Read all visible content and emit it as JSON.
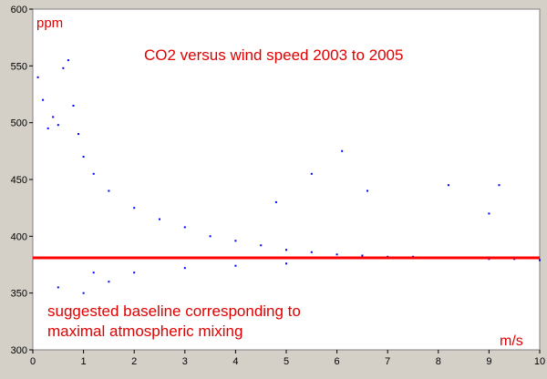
{
  "chart_data": {
    "type": "scatter",
    "title": "CO2 versus wind speed 2003 to 2005",
    "ylabel": "ppm",
    "xlabel": "m/s",
    "xlim": [
      0,
      10
    ],
    "ylim": [
      300,
      600
    ],
    "x_ticks": [
      "0",
      "1",
      "2",
      "3",
      "4",
      "5",
      "6",
      "7",
      "8",
      "9",
      "10"
    ],
    "y_ticks": [
      "300",
      "350",
      "400",
      "450",
      "500",
      "550",
      "600"
    ],
    "grid": false,
    "point_color": "#0000ff",
    "baseline": {
      "y": 381,
      "color": "#ff0000"
    },
    "annotation": [
      "suggested baseline corresponding to",
      "maximal atmospheric mixing"
    ],
    "series": [
      {
        "points": [
          [
            0.1,
            540
          ],
          [
            0.2,
            520
          ],
          [
            0.3,
            495
          ],
          [
            0.4,
            505
          ],
          [
            0.5,
            498
          ],
          [
            0.6,
            548
          ],
          [
            0.7,
            555
          ],
          [
            0.8,
            515
          ],
          [
            0.9,
            490
          ],
          [
            1.0,
            470
          ],
          [
            1.2,
            455
          ],
          [
            1.5,
            440
          ],
          [
            2.0,
            425
          ],
          [
            2.5,
            415
          ],
          [
            3.0,
            408
          ],
          [
            3.5,
            400
          ],
          [
            4.0,
            396
          ],
          [
            4.5,
            392
          ],
          [
            5.0,
            388
          ],
          [
            5.5,
            386
          ],
          [
            6.0,
            384
          ],
          [
            6.5,
            383
          ],
          [
            7.0,
            382
          ],
          [
            7.5,
            382
          ],
          [
            8.0,
            381
          ],
          [
            8.5,
            381
          ],
          [
            9.0,
            380
          ],
          [
            9.5,
            380
          ],
          [
            10.0,
            379
          ],
          [
            0.5,
            355
          ],
          [
            1.0,
            350
          ],
          [
            1.5,
            360
          ],
          [
            2.0,
            368
          ],
          [
            3.0,
            372
          ],
          [
            4.0,
            374
          ],
          [
            5.0,
            376
          ],
          [
            1.2,
            368
          ],
          [
            6.1,
            475
          ],
          [
            6.6,
            440
          ],
          [
            8.2,
            445
          ],
          [
            9.2,
            445
          ],
          [
            9.0,
            420
          ],
          [
            5.5,
            455
          ],
          [
            4.8,
            430
          ]
        ]
      }
    ]
  }
}
